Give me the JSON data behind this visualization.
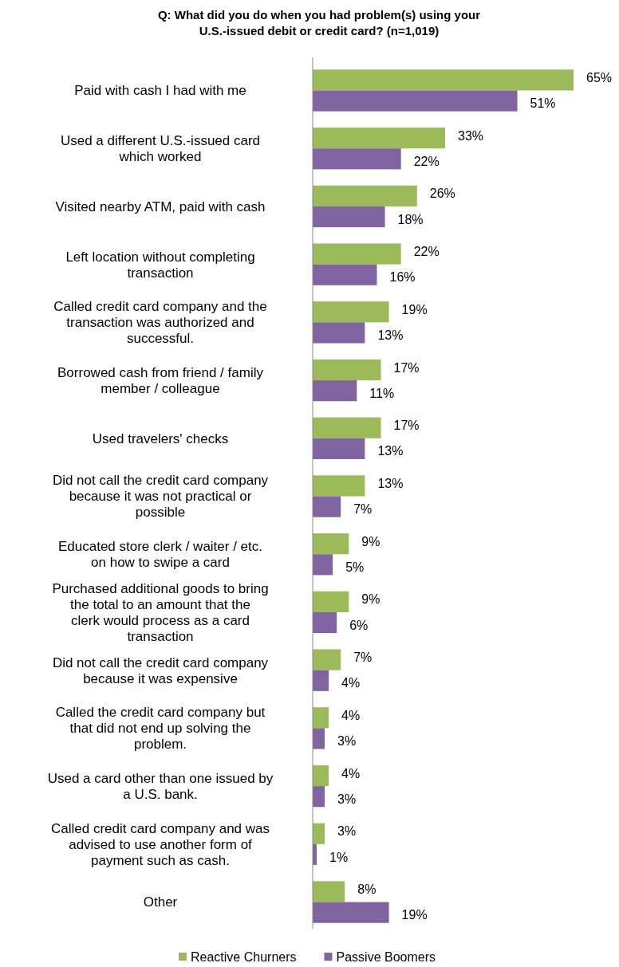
{
  "chart_data": {
    "type": "bar",
    "orientation": "horizontal",
    "title": "Q: What did you do when you had problem(s) using your U.S.-issued debit or credit card? (n=1,019)",
    "categories": [
      "Paid with cash I had with me",
      "Used a different U.S.-issued card which worked",
      "Visited nearby ATM, paid with cash",
      "Left location without completing transaction",
      "Called credit card company and the transaction was authorized and successful.",
      "Borrowed cash from friend / family member / colleague",
      "Used travelers' checks",
      "Did not call the credit card company because it was not practical or possible",
      "Educated store clerk / waiter / etc. on how to swipe a card",
      "Purchased additional goods to bring the total to an amount that the clerk would process as a card transaction",
      "Did not call the credit card company because it was expensive",
      "Called the credit card company but that did not end up solving the problem.",
      "Used a card other than one issued by a U.S. bank.",
      "Called credit card company and was advised to use another form of payment such as cash.",
      "Other"
    ],
    "series": [
      {
        "name": "Reactive Churners",
        "color": "#9bbb59",
        "values": [
          65,
          33,
          26,
          22,
          19,
          17,
          17,
          13,
          9,
          9,
          7,
          4,
          4,
          3,
          8
        ],
        "value_labels": [
          "65%",
          "33%",
          "26%",
          "22%",
          "19%",
          "17%",
          "17%",
          "13%",
          "9%",
          "9%",
          "7%",
          "4%",
          "4%",
          "3%",
          "8%"
        ]
      },
      {
        "name": "Passive Boomers",
        "color": "#8064a2",
        "values": [
          51,
          22,
          18,
          16,
          13,
          11,
          13,
          7,
          5,
          6,
          4,
          3,
          3,
          1,
          19
        ],
        "value_labels": [
          "51%",
          "22%",
          "18%",
          "16%",
          "13%",
          "11%",
          "13%",
          "7%",
          "5%",
          "6%",
          "4%",
          "3%",
          "3%",
          "1%",
          "19%"
        ]
      }
    ],
    "legend": "bottom"
  }
}
